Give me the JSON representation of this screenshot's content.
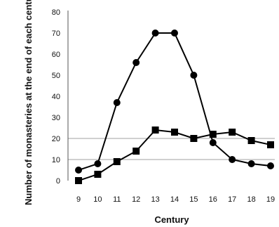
{
  "chart_data": {
    "type": "line",
    "title": "",
    "xlabel": "Century",
    "ylabel": "Number of monasteries at the end of each century",
    "x": [
      9,
      10,
      11,
      12,
      13,
      14,
      15,
      16,
      17,
      18,
      19
    ],
    "ylim": [
      0,
      80
    ],
    "yticks": [
      0,
      10,
      20,
      30,
      40,
      50,
      60,
      70,
      80
    ],
    "gridlines": [
      10,
      20
    ],
    "legend": "none",
    "colors": {
      "line": "#000000",
      "grid": "#a0a0a0"
    },
    "series": [
      {
        "marker": "circle",
        "values": [
          5,
          8,
          37,
          56,
          70,
          70,
          50,
          18,
          10,
          8,
          7
        ]
      },
      {
        "marker": "square",
        "values": [
          0,
          3,
          9,
          14,
          24,
          23,
          20,
          22,
          23,
          19,
          17
        ]
      }
    ]
  }
}
